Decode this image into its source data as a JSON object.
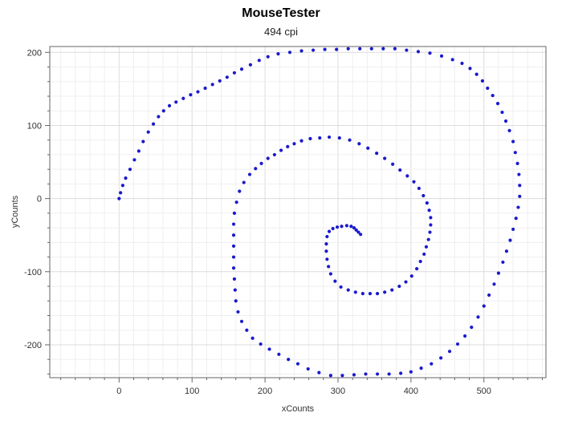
{
  "chart_data": {
    "type": "scatter",
    "title": "MouseTester",
    "subtitle": "494 cpi",
    "xlabel": "xCounts",
    "ylabel": "yCounts",
    "xlim": [
      -95,
      585
    ],
    "ylim": [
      -245,
      208
    ],
    "x_ticks": [
      0,
      100,
      200,
      300,
      400,
      500
    ],
    "y_ticks": [
      200,
      100,
      0,
      -100,
      -200
    ],
    "x_tick_labels": [
      "0",
      "100",
      "200",
      "300",
      "400",
      "500"
    ],
    "y_tick_labels": [
      "200",
      "100",
      "0",
      "-100",
      "-200"
    ],
    "grid": true,
    "marker_color": "#1a1acc",
    "series": [
      {
        "points": [
          [
            0,
            0
          ],
          [
            2,
            8
          ],
          [
            5,
            18
          ],
          [
            9,
            28
          ],
          [
            15,
            40
          ],
          [
            21,
            53
          ],
          [
            27,
            65
          ],
          [
            33,
            78
          ],
          [
            40,
            91
          ],
          [
            47,
            102
          ],
          [
            54,
            112
          ],
          [
            61,
            120
          ],
          [
            69,
            127
          ],
          [
            78,
            132
          ],
          [
            88,
            137
          ],
          [
            98,
            142
          ],
          [
            108,
            146
          ],
          [
            118,
            151
          ],
          [
            128,
            156
          ],
          [
            138,
            161
          ],
          [
            148,
            166
          ],
          [
            158,
            172
          ],
          [
            168,
            177
          ],
          [
            180,
            183
          ],
          [
            192,
            189
          ],
          [
            204,
            194
          ],
          [
            218,
            198
          ],
          [
            234,
            200
          ],
          [
            250,
            202
          ],
          [
            266,
            203
          ],
          [
            282,
            204
          ],
          [
            298,
            204
          ],
          [
            314,
            205
          ],
          [
            330,
            205
          ],
          [
            346,
            205
          ],
          [
            362,
            205
          ],
          [
            378,
            205
          ],
          [
            394,
            203
          ],
          [
            410,
            201
          ],
          [
            426,
            199
          ],
          [
            442,
            195
          ],
          [
            457,
            190
          ],
          [
            470,
            185
          ],
          [
            481,
            178
          ],
          [
            490,
            170
          ],
          [
            498,
            161
          ],
          [
            505,
            151
          ],
          [
            512,
            141
          ],
          [
            519,
            130
          ],
          [
            525,
            118
          ],
          [
            530,
            106
          ],
          [
            535,
            93
          ],
          [
            540,
            78
          ],
          [
            543,
            63
          ],
          [
            546,
            48
          ],
          [
            548,
            33
          ],
          [
            549,
            18
          ],
          [
            549,
            3
          ],
          [
            547,
            -12
          ],
          [
            544,
            -27
          ],
          [
            540,
            -42
          ],
          [
            536,
            -57
          ],
          [
            531,
            -72
          ],
          [
            526,
            -87
          ],
          [
            520,
            -102
          ],
          [
            514,
            -117
          ],
          [
            507,
            -132
          ],
          [
            500,
            -147
          ],
          [
            492,
            -162
          ],
          [
            483,
            -176
          ],
          [
            474,
            -188
          ],
          [
            464,
            -199
          ],
          [
            453,
            -209
          ],
          [
            441,
            -218
          ],
          [
            428,
            -226
          ],
          [
            414,
            -232
          ],
          [
            400,
            -237
          ],
          [
            386,
            -239
          ],
          [
            370,
            -240
          ],
          [
            354,
            -240
          ],
          [
            338,
            -240
          ],
          [
            322,
            -241
          ],
          [
            306,
            -242
          ],
          [
            290,
            -242
          ],
          [
            274,
            -238
          ],
          [
            259,
            -233
          ],
          [
            245,
            -226
          ],
          [
            232,
            -220
          ],
          [
            219,
            -213
          ],
          [
            206,
            -206
          ],
          [
            194,
            -199
          ],
          [
            183,
            -191
          ],
          [
            175,
            -180
          ],
          [
            168,
            -168
          ],
          [
            163,
            -155
          ],
          [
            160,
            -140
          ],
          [
            159,
            -125
          ],
          [
            158,
            -110
          ],
          [
            157,
            -95
          ],
          [
            157,
            -80
          ],
          [
            157,
            -65
          ],
          [
            157,
            -50
          ],
          [
            157,
            -35
          ],
          [
            158,
            -20
          ],
          [
            161,
            -5
          ],
          [
            165,
            10
          ],
          [
            171,
            22
          ],
          [
            179,
            33
          ],
          [
            187,
            41
          ],
          [
            195,
            48
          ],
          [
            204,
            55
          ],
          [
            213,
            60
          ],
          [
            222,
            66
          ],
          [
            231,
            71
          ],
          [
            240,
            75
          ],
          [
            250,
            79
          ],
          [
            262,
            82
          ],
          [
            275,
            83
          ],
          [
            288,
            84
          ],
          [
            302,
            83
          ],
          [
            316,
            80
          ],
          [
            329,
            75
          ],
          [
            341,
            69
          ],
          [
            353,
            62
          ],
          [
            364,
            55
          ],
          [
            375,
            47
          ],
          [
            385,
            39
          ],
          [
            395,
            31
          ],
          [
            404,
            23
          ],
          [
            411,
            14
          ],
          [
            417,
            4
          ],
          [
            422,
            -6
          ],
          [
            425,
            -16
          ],
          [
            427,
            -26
          ],
          [
            427,
            -36
          ],
          [
            426,
            -46
          ],
          [
            424,
            -56
          ],
          [
            421,
            -66
          ],
          [
            418,
            -76
          ],
          [
            413,
            -86
          ],
          [
            408,
            -96
          ],
          [
            401,
            -106
          ],
          [
            393,
            -114
          ],
          [
            384,
            -120
          ],
          [
            374,
            -125
          ],
          [
            364,
            -128
          ],
          [
            354,
            -130
          ],
          [
            344,
            -130
          ],
          [
            334,
            -130
          ],
          [
            324,
            -128
          ],
          [
            314,
            -125
          ],
          [
            304,
            -121
          ],
          [
            296,
            -113
          ],
          [
            290,
            -103
          ],
          [
            287,
            -93
          ],
          [
            285,
            -83
          ],
          [
            284,
            -72
          ],
          [
            284,
            -62
          ],
          [
            285,
            -52
          ],
          [
            288,
            -45
          ],
          [
            293,
            -41
          ],
          [
            299,
            -39
          ],
          [
            305,
            -38
          ],
          [
            312,
            -37
          ],
          [
            318,
            -38
          ],
          [
            322,
            -40
          ],
          [
            325,
            -43
          ],
          [
            328,
            -46
          ],
          [
            331,
            -49
          ]
        ]
      }
    ]
  }
}
